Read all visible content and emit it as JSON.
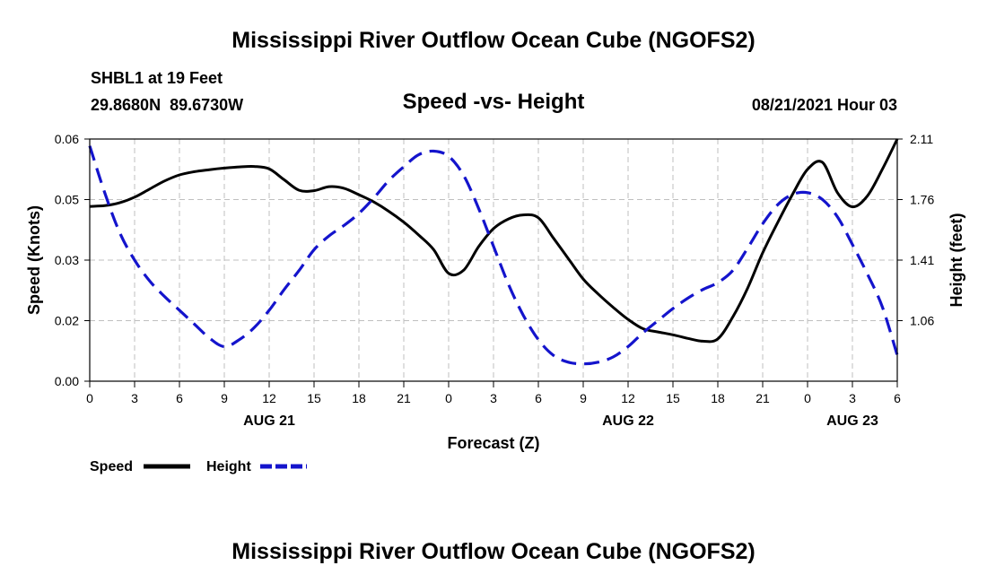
{
  "title_top": "Mississippi River Outflow Ocean Cube (NGOFS2)",
  "title_bottom": "Mississippi River Outflow Ocean Cube (NGOFS2)",
  "station": {
    "name_depth": "SHBL1 at 19 Feet",
    "coords": "29.8680N  89.6730W"
  },
  "subtitle": "Speed -vs- Height",
  "datetime": "08/21/2021 Hour 03",
  "colors": {
    "speed": "#000000",
    "height": "#1414cc",
    "grid": "#bfbfbf"
  },
  "chart_data": {
    "type": "line",
    "title": "Speed -vs- Height",
    "xlabel": "Forecast (Z)",
    "ylabel_left": "Speed (Knots)",
    "ylabel_right": "Height (feet)",
    "x_hours_range": [
      0,
      54
    ],
    "x_ticks": [
      {
        "h": 0,
        "label": "0"
      },
      {
        "h": 3,
        "label": "3"
      },
      {
        "h": 6,
        "label": "6"
      },
      {
        "h": 9,
        "label": "9"
      },
      {
        "h": 12,
        "label": "12"
      },
      {
        "h": 15,
        "label": "15"
      },
      {
        "h": 18,
        "label": "18"
      },
      {
        "h": 21,
        "label": "21"
      },
      {
        "h": 24,
        "label": "0"
      },
      {
        "h": 27,
        "label": "3"
      },
      {
        "h": 30,
        "label": "6"
      },
      {
        "h": 33,
        "label": "9"
      },
      {
        "h": 36,
        "label": "12"
      },
      {
        "h": 39,
        "label": "15"
      },
      {
        "h": 42,
        "label": "18"
      },
      {
        "h": 45,
        "label": "21"
      },
      {
        "h": 48,
        "label": "0"
      },
      {
        "h": 51,
        "label": "3"
      },
      {
        "h": 54,
        "label": "6"
      }
    ],
    "date_labels": [
      {
        "h": 12,
        "label": "AUG 21"
      },
      {
        "h": 36,
        "label": "AUG 22"
      },
      {
        "h": 51,
        "label": "AUG 23"
      }
    ],
    "y_left": {
      "range": [
        0,
        0.06
      ],
      "ticks": [
        0,
        0.015,
        0.03,
        0.045,
        0.06
      ],
      "tick_labels": [
        "0.00",
        "0.02",
        "0.03",
        "0.05",
        "0.06"
      ]
    },
    "y_right": {
      "range": [
        0.71,
        2.11
      ],
      "ticks": [
        1.06,
        1.41,
        1.76,
        2.11
      ],
      "tick_labels": [
        "1.06",
        "1.41",
        "1.76",
        "2.11"
      ]
    },
    "series": [
      {
        "name": "Speed",
        "axis": "left",
        "style": "solid",
        "x": [
          0,
          1,
          2,
          3,
          4,
          5,
          6,
          7,
          8,
          9,
          10,
          11,
          12,
          13,
          14,
          15,
          16,
          17,
          18,
          19,
          20,
          21,
          22,
          23,
          24,
          25,
          26,
          27,
          28,
          29,
          30,
          31,
          32,
          33,
          34,
          35,
          36,
          37,
          38,
          39,
          40,
          41,
          42,
          43,
          44,
          45,
          46,
          47,
          48,
          49,
          50,
          51,
          52,
          53,
          54
        ],
        "values": [
          0.0433,
          0.0435,
          0.0442,
          0.0456,
          0.0476,
          0.0496,
          0.0511,
          0.0519,
          0.0524,
          0.0528,
          0.0531,
          0.0532,
          0.0526,
          0.0499,
          0.0473,
          0.0472,
          0.0482,
          0.0478,
          0.0462,
          0.0444,
          0.0421,
          0.0394,
          0.0362,
          0.0326,
          0.0267,
          0.0275,
          0.0333,
          0.0378,
          0.0402,
          0.0412,
          0.0405,
          0.0355,
          0.0304,
          0.0253,
          0.0216,
          0.0183,
          0.0153,
          0.013,
          0.0122,
          0.0115,
          0.0106,
          0.0099,
          0.0105,
          0.0159,
          0.0231,
          0.0318,
          0.0393,
          0.0463,
          0.0525,
          0.0542,
          0.0467,
          0.0432,
          0.0459,
          0.0525,
          0.06
        ]
      },
      {
        "name": "Height",
        "axis": "right",
        "style": "dashed",
        "x": [
          0,
          1,
          2,
          3,
          4,
          5,
          6,
          7,
          8,
          9,
          10,
          11,
          12,
          13,
          14,
          15,
          16,
          17,
          18,
          19,
          20,
          21,
          22,
          23,
          24,
          25,
          26,
          27,
          28,
          29,
          30,
          31,
          32,
          33,
          34,
          35,
          36,
          37,
          38,
          39,
          40,
          41,
          42,
          43,
          44,
          45,
          46,
          47,
          48,
          49,
          50,
          51,
          52,
          53,
          54
        ],
        "values": [
          2.07,
          1.8,
          1.57,
          1.41,
          1.29,
          1.2,
          1.12,
          1.04,
          0.96,
          0.91,
          0.95,
          1.02,
          1.12,
          1.24,
          1.35,
          1.47,
          1.55,
          1.61,
          1.68,
          1.77,
          1.87,
          1.95,
          2.02,
          2.04,
          2.01,
          1.9,
          1.71,
          1.49,
          1.27,
          1.09,
          0.95,
          0.86,
          0.82,
          0.81,
          0.82,
          0.85,
          0.91,
          0.99,
          1.06,
          1.13,
          1.19,
          1.24,
          1.28,
          1.35,
          1.48,
          1.62,
          1.73,
          1.79,
          1.8,
          1.76,
          1.66,
          1.5,
          1.33,
          1.14,
          0.86
        ]
      }
    ],
    "legend": [
      {
        "label": "Speed",
        "style": "solid"
      },
      {
        "label": "Height",
        "style": "dashed"
      }
    ],
    "grid": true
  }
}
